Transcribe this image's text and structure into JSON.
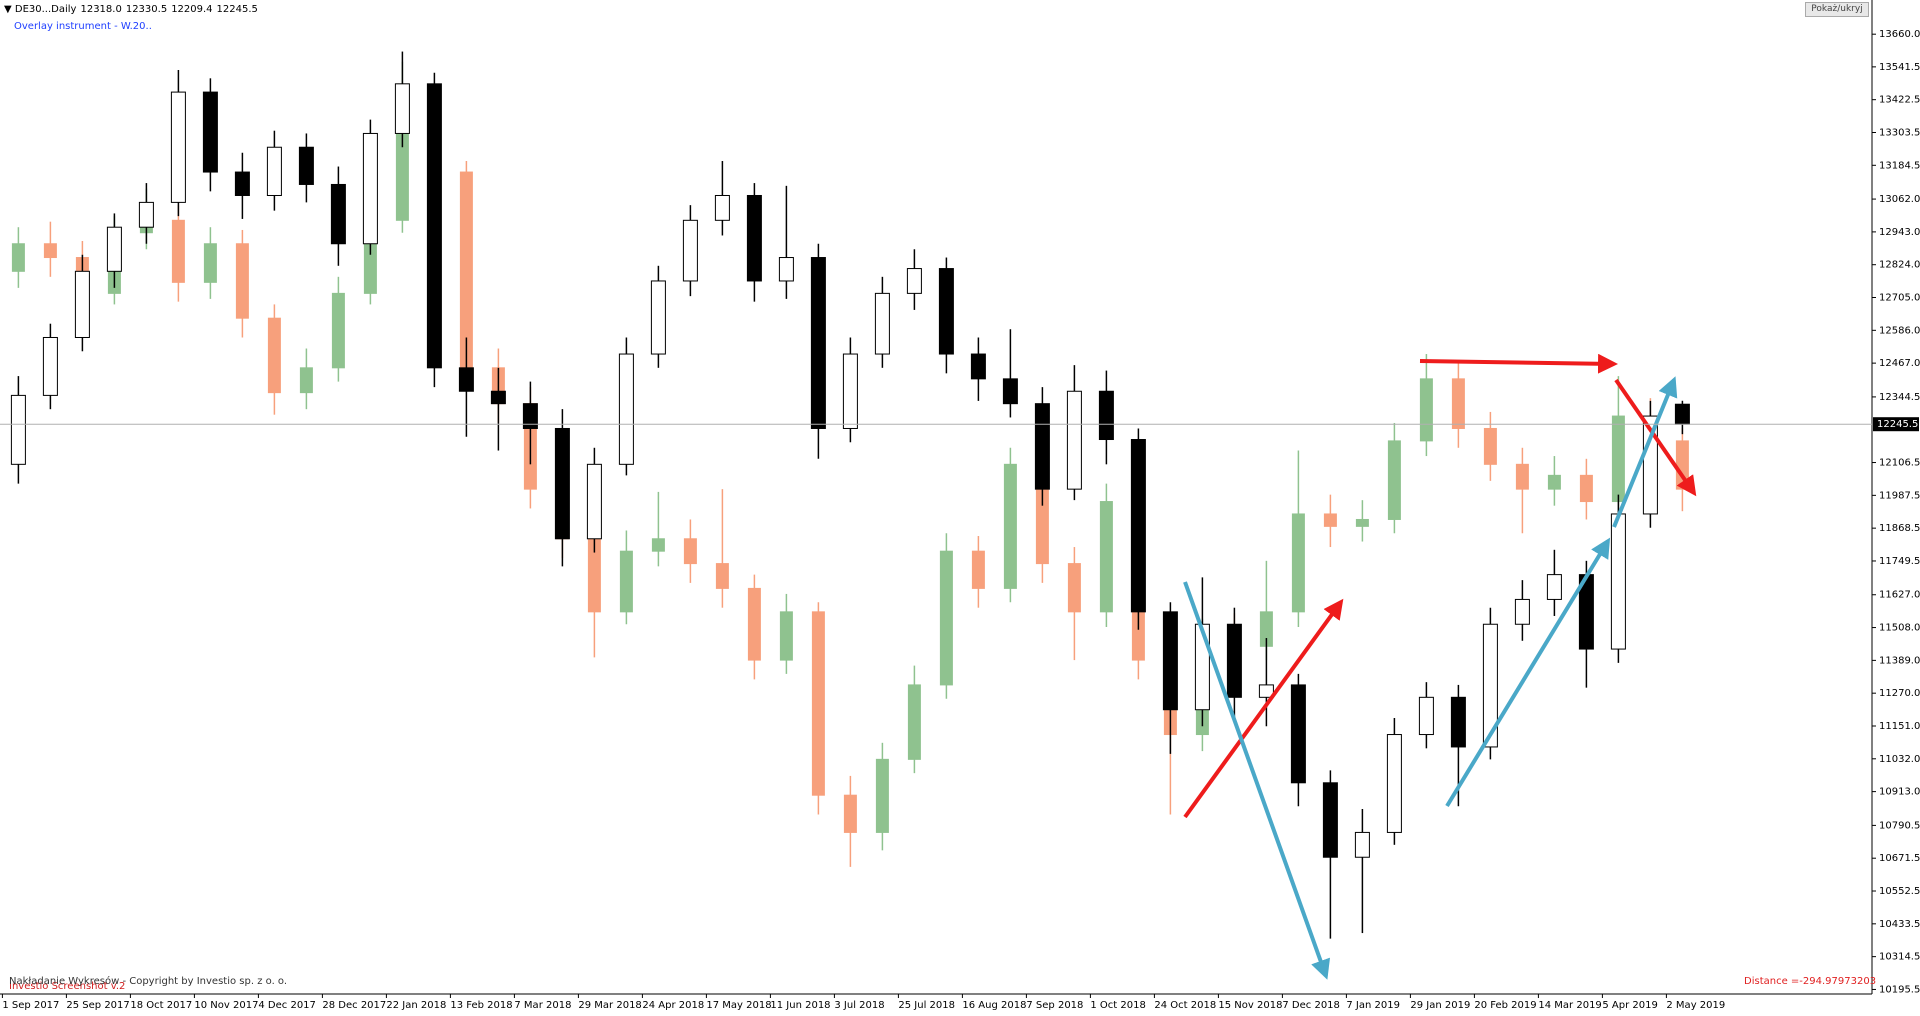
{
  "chart_data": {
    "type": "candlestick",
    "header_ohlc": [
      "12318.0",
      "12330.5",
      "12209.4",
      "12245.5"
    ],
    "categories": [
      "1 Sep 2017",
      null,
      "25 Sep 2017",
      null,
      "18 Oct 2017",
      null,
      "10 Nov 2017",
      null,
      "4 Dec 2017",
      null,
      "28 Dec 2017",
      null,
      "22 Jan 2018",
      null,
      "13 Feb 2018",
      null,
      "7 Mar 2018",
      null,
      "29 Mar 2018",
      null,
      "24 Apr 2018",
      null,
      "17 May 2018",
      null,
      "11 Jun 2018",
      null,
      "3 Jul 2018",
      null,
      "25 Jul 2018",
      null,
      "16 Aug 2018",
      null,
      "7 Sep 2018",
      null,
      "1 Oct 2018",
      null,
      "24 Oct 2018",
      null,
      "15 Nov 2018",
      null,
      "7 Dec 2018",
      null,
      "7 Jan 2019",
      null,
      "29 Jan 2019",
      null,
      "20 Feb 2019",
      null,
      "14 Mar 2019",
      null,
      "5 Apr 2019",
      null,
      "2 May 2019"
    ],
    "series": [
      {
        "name": "Overlay instrument - W.20..",
        "up_color": "#8fc28f",
        "down_color": "#f7a07c",
        "edge_color": null,
        "open": [
          12800,
          12900,
          12850,
          12720,
          12940,
          12985,
          12760,
          12900,
          12630,
          12360,
          12450,
          12720,
          12985,
          13385,
          13160,
          12450,
          12320,
          12010,
          11830,
          11565,
          11785,
          11830,
          11740,
          11650,
          11390,
          11565,
          10900,
          10765,
          11030,
          11300,
          11785,
          11650,
          12100,
          11740,
          11565,
          11965,
          11390,
          11120,
          11475,
          11440,
          11565,
          11920,
          11875,
          11900,
          12185,
          12410,
          12230,
          12100,
          12010,
          12060,
          11965,
          12275,
          12185
        ],
        "high": [
          12960,
          12980,
          12910,
          13000,
          13100,
          13040,
          12960,
          12950,
          12680,
          12520,
          12780,
          13060,
          13560,
          13430,
          13200,
          12520,
          12380,
          12070,
          11880,
          11860,
          12000,
          11900,
          12010,
          11700,
          11630,
          11600,
          10970,
          11090,
          11370,
          11850,
          11840,
          12160,
          12150,
          11800,
          12030,
          12020,
          11440,
          11540,
          11560,
          11750,
          12150,
          11990,
          11970,
          12250,
          12500,
          12470,
          12290,
          12160,
          12130,
          12120,
          12420,
          12340,
          12230
        ],
        "low": [
          12740,
          12780,
          12650,
          12680,
          12880,
          12690,
          12700,
          12560,
          12280,
          12300,
          12400,
          12680,
          12940,
          13100,
          12380,
          12250,
          11940,
          11760,
          11400,
          11520,
          11730,
          11670,
          11580,
          11320,
          11340,
          10830,
          10640,
          10700,
          10980,
          11250,
          11580,
          11600,
          11670,
          11390,
          11510,
          11320,
          10830,
          11060,
          11370,
          11390,
          11510,
          11800,
          11820,
          11850,
          12130,
          12160,
          12040,
          11850,
          11950,
          11900,
          11910,
          12110,
          11930
        ],
        "close": [
          12900,
          12850,
          12720,
          12940,
          12985,
          12760,
          12900,
          12630,
          12360,
          12450,
          12720,
          12985,
          13385,
          13160,
          12450,
          12320,
          12010,
          11830,
          11565,
          11785,
          11830,
          11740,
          11650,
          11390,
          11565,
          10900,
          10765,
          11030,
          11300,
          11785,
          11650,
          12100,
          11740,
          11565,
          11965,
          11390,
          11120,
          11475,
          11440,
          11565,
          11920,
          11875,
          11900,
          12185,
          12410,
          12230,
          12100,
          12010,
          12060,
          11965,
          12275,
          12185,
          12010
        ]
      },
      {
        "name": "DE30...Daily",
        "up_color": "#ffffff",
        "down_color": "#000000",
        "edge_color": "#000000",
        "open": [
          12100,
          12350,
          12560,
          12800,
          12960,
          13050,
          13450,
          13160,
          13075,
          13250,
          13115,
          12900,
          13300,
          13480,
          12450,
          12365,
          12320,
          12230,
          11830,
          12100,
          12500,
          12765,
          12985,
          13075,
          12765,
          12850,
          12230,
          12500,
          12720,
          12810,
          12500,
          12410,
          12320,
          12010,
          12365,
          12190,
          11565,
          11210,
          11520,
          11255,
          11300,
          10945,
          10675,
          10765,
          11120,
          11255,
          11075,
          11520,
          11610,
          11700,
          11430,
          11920,
          12318
        ],
        "high": [
          12420,
          12610,
          12860,
          13010,
          13120,
          13530,
          13500,
          13230,
          13310,
          13300,
          13180,
          13350,
          13597,
          13520,
          12560,
          12450,
          12400,
          12300,
          12160,
          12560,
          12820,
          13040,
          13200,
          13120,
          13110,
          12900,
          12560,
          12780,
          12880,
          12850,
          12560,
          12590,
          12380,
          12460,
          12440,
          12230,
          11600,
          11690,
          11580,
          11470,
          11340,
          10990,
          10850,
          11180,
          11310,
          11300,
          11580,
          11680,
          11790,
          11750,
          11990,
          12330,
          12330.5
        ],
        "low": [
          12030,
          12300,
          12510,
          12740,
          12900,
          13000,
          13090,
          12990,
          13020,
          13050,
          12820,
          12860,
          13250,
          12380,
          12200,
          12150,
          12100,
          11730,
          11780,
          12060,
          12450,
          12710,
          12930,
          12690,
          12700,
          12120,
          12180,
          12450,
          12660,
          12430,
          12330,
          12270,
          11950,
          11970,
          12100,
          11500,
          11050,
          11150,
          11180,
          11150,
          10860,
          10380,
          10400,
          10720,
          11070,
          10860,
          11030,
          11460,
          11550,
          11290,
          11380,
          11870,
          12209.4
        ],
        "close": [
          12350,
          12560,
          12800,
          12960,
          13050,
          13450,
          13160,
          13075,
          13250,
          13115,
          12900,
          13300,
          13480,
          12450,
          12365,
          12320,
          12230,
          11830,
          12100,
          12500,
          12765,
          12985,
          13075,
          12765,
          12850,
          12230,
          12500,
          12720,
          12810,
          12500,
          12410,
          12320,
          12010,
          12365,
          12190,
          11565,
          11210,
          11520,
          11255,
          11300,
          10945,
          10675,
          10765,
          11120,
          11255,
          11075,
          11520,
          11610,
          11700,
          11430,
          11920,
          12275,
          12245.5
        ]
      }
    ],
    "ylim": [
      10179,
      13784
    ],
    "yticks": [
      {
        "value": 13660,
        "label": "13660.0"
      },
      13541.5,
      13422.5,
      13303.5,
      13184.5,
      {
        "value": 13062,
        "label": "13062.0"
      },
      {
        "value": 12943,
        "label": "12943.0"
      },
      {
        "value": 12824,
        "label": "12824.0"
      },
      {
        "value": 12705,
        "label": "12705.0"
      },
      {
        "value": 12586,
        "label": "12586.0"
      },
      {
        "value": 12467,
        "label": "12467.0"
      },
      12344.5,
      12106.5,
      11987.5,
      11868.5,
      11749.5,
      {
        "value": 11627,
        "label": "11627.0"
      },
      {
        "value": 11508,
        "label": "11508.0"
      },
      {
        "value": 11389,
        "label": "11389.0"
      },
      {
        "value": 11270,
        "label": "11270.0"
      },
      {
        "value": 11151,
        "label": "11151.0"
      },
      {
        "value": 11032,
        "label": "11032.0"
      },
      {
        "value": 10913,
        "label": "10913.0"
      },
      10790.5,
      10671.5,
      10552.5,
      10433.5,
      10314.5,
      10195.5
    ],
    "grid": false,
    "last_price": 12245.5,
    "footer_text": "Nakładanie Wykresów - Copyright by Investio sp. z o. o.",
    "watermark_text": "Investio Screenshot v.2",
    "distance_text": "Distance =-294.97973203",
    "toggle_button": "Pokaż/ukryj"
  }
}
